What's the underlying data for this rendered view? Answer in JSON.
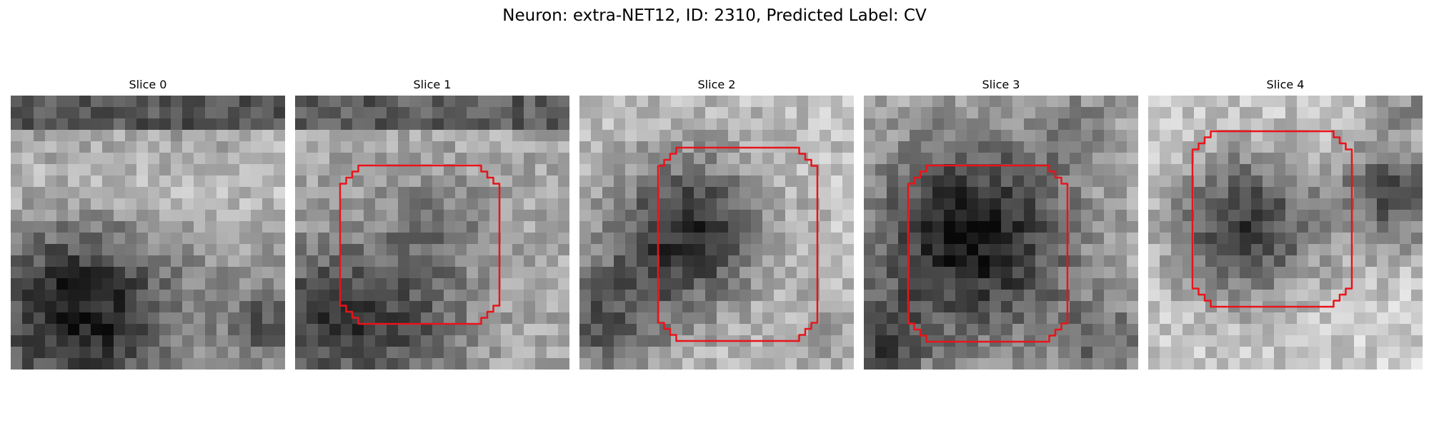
{
  "figure": {
    "title": "Neuron: extra-NET12, ID: 2310, Predicted Label: CV"
  },
  "colors": {
    "background": "#ffffff",
    "contour": "#e8141a",
    "colormap": "gray"
  },
  "slices": [
    {
      "title": "Slice 0",
      "has_contour": false
    },
    {
      "title": "Slice 1",
      "has_contour": true
    },
    {
      "title": "Slice 2",
      "has_contour": true
    },
    {
      "title": "Slice 3",
      "has_contour": true
    },
    {
      "title": "Slice 4",
      "has_contour": true
    }
  ]
}
